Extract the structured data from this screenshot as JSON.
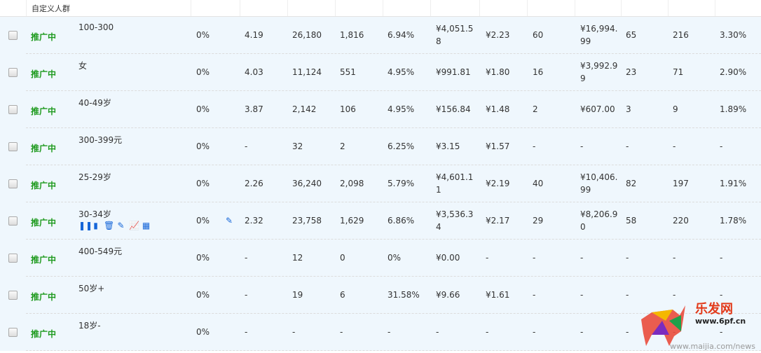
{
  "header": {
    "title": "自定义人群"
  },
  "status_color": "#1e9a1e",
  "icon_color": "#1565d8",
  "rows": [
    {
      "status": "推广中",
      "name": "100-300",
      "cols": [
        "0%",
        "4.19",
        "26,180",
        "1,816",
        "6.94%",
        "¥4,051.58",
        "¥2.23",
        "60",
        "¥16,994.99",
        "65",
        "216",
        "3.30%"
      ]
    },
    {
      "status": "推广中",
      "name": "女",
      "cols": [
        "0%",
        "4.03",
        "11,124",
        "551",
        "4.95%",
        "¥991.81",
        "¥1.80",
        "16",
        "¥3,992.99",
        "23",
        "71",
        "2.90%"
      ]
    },
    {
      "status": "推广中",
      "name": "40-49岁",
      "cols": [
        "0%",
        "3.87",
        "2,142",
        "106",
        "4.95%",
        "¥156.84",
        "¥1.48",
        "2",
        "¥607.00",
        "3",
        "9",
        "1.89%"
      ]
    },
    {
      "status": "推广中",
      "name": "300-399元",
      "cols": [
        "0%",
        "-",
        "32",
        "2",
        "6.25%",
        "¥3.15",
        "¥1.57",
        "-",
        "-",
        "-",
        "-",
        "-"
      ]
    },
    {
      "status": "推广中",
      "name": "25-29岁",
      "cols": [
        "0%",
        "2.26",
        "36,240",
        "2,098",
        "5.79%",
        "¥4,601.11",
        "¥2.19",
        "40",
        "¥10,406.99",
        "82",
        "197",
        "1.91%"
      ]
    },
    {
      "status": "推广中",
      "name": "30-34岁",
      "hover": true,
      "cols": [
        "0%",
        "2.32",
        "23,758",
        "1,629",
        "6.86%",
        "¥3,536.34",
        "¥2.17",
        "29",
        "¥8,206.90",
        "58",
        "220",
        "1.78%"
      ]
    },
    {
      "status": "推广中",
      "name": "400-549元",
      "cols": [
        "0%",
        "-",
        "12",
        "0",
        "0%",
        "¥0.00",
        "-",
        "-",
        "-",
        "-",
        "-",
        "-"
      ]
    },
    {
      "status": "推广中",
      "name": "50岁+",
      "cols": [
        "0%",
        "-",
        "19",
        "6",
        "31.58%",
        "¥9.66",
        "¥1.61",
        "-",
        "-",
        "-",
        "-",
        "-"
      ]
    },
    {
      "status": "推广中",
      "name": "18岁-",
      "cols": [
        "0%",
        "-",
        "-",
        "-",
        "-",
        "-",
        "-",
        "-",
        "-",
        "-",
        "-",
        "-"
      ]
    }
  ],
  "row_icons": [
    "pause-icon",
    "clipboard-icon",
    "trash-icon",
    "edit-icon",
    "line-chart-icon",
    "report-icon"
  ],
  "watermark": {
    "logo": "乐发网",
    "url": "www.6pf.cn",
    "url2": "www.maijia.com/news"
  }
}
